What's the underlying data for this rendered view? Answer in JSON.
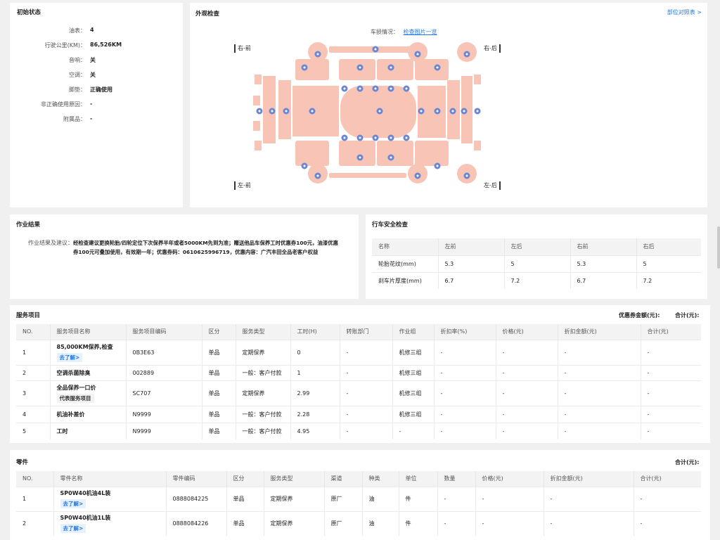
{
  "initial": {
    "title": "初始状态",
    "rows": [
      {
        "k": "油表：",
        "v": "4"
      },
      {
        "k": "行驶公里(KM)：",
        "v": "86,526KM"
      },
      {
        "k": "音响：",
        "v": "关"
      },
      {
        "k": "空调：",
        "v": "关"
      },
      {
        "k": "脚垫：",
        "v": "正确使用"
      },
      {
        "k": "非正确使用原因：",
        "v": "-"
      },
      {
        "k": "附属品：",
        "v": "-"
      }
    ]
  },
  "exterior": {
    "title": "外观检查",
    "compare_link": "部位对照表 >",
    "damage_label": "车损情况：",
    "damage_link": "检查图片一览",
    "corner_labels": {
      "front_right": "右-前",
      "rear_right": "右-后",
      "front_left": "左-前",
      "rear_left": "左-后"
    },
    "colors": {
      "panel": "#f7c4b6",
      "dot": "#6c86d4"
    }
  },
  "work": {
    "title": "作业结果",
    "label": "作业结果及建议：",
    "line1": "经检查建议更换轮胎/四轮定位下次保养半年或者5000KM先到为准；赠送他品车保养工时优惠券100元，油漆优惠",
    "line2": "券100元可叠加使用，有效期一年；优惠券码：0610625996719，优惠内容：广汽丰田全品老客户权益"
  },
  "safety": {
    "title": "行车安全检查",
    "headers": [
      "名称",
      "左前",
      "左后",
      "右前",
      "右后"
    ],
    "rows": [
      [
        "轮胎花纹(mm)",
        "5.3",
        "5",
        "5.3",
        "5"
      ],
      [
        "刹车片厚度(mm)",
        "6.7",
        "7.2",
        "6.7",
        "7.2"
      ]
    ]
  },
  "services": {
    "title": "服务项目",
    "coupon_label": "优惠券金额(元):",
    "total_label": "合计(元):",
    "headers": [
      "NO.",
      "服务项目名称",
      "服务项目编码",
      "区分",
      "服务类型",
      "工时(H)",
      "转账部门",
      "作业组",
      "折扣率(%)",
      "价格(元)",
      "折扣金额(元)",
      "合计(元)"
    ],
    "rows": [
      {
        "no": "1",
        "name": "85,000KM保养,检查",
        "tag": "去了解>",
        "code": "0B3E63",
        "kind": "单品",
        "type": "定期保养",
        "hours": "0",
        "dept": "-",
        "group": "机修三组",
        "rate": "-",
        "price": "-",
        "disc": "-",
        "total": "-"
      },
      {
        "no": "2",
        "name": "空调杀菌除臭",
        "code": "002889",
        "kind": "单品",
        "type": "一般：客户付款",
        "hours": "1",
        "dept": "-",
        "group": "机修三组",
        "rate": "-",
        "price": "-",
        "disc": "-",
        "total": "-"
      },
      {
        "no": "3",
        "name": "全品保养一口价",
        "grey_tag": "代表服务项目",
        "code": "SC707",
        "kind": "单品",
        "type": "定期保养",
        "hours": "2.99",
        "dept": "-",
        "group": "机修三组",
        "rate": "-",
        "price": "-",
        "disc": "-",
        "total": "-"
      },
      {
        "no": "4",
        "name": "机油补差价",
        "code": "N9999",
        "kind": "单品",
        "type": "一般：客户付款",
        "hours": "2.28",
        "dept": "-",
        "group": "机修三组",
        "rate": "-",
        "price": "-",
        "disc": "-",
        "total": "-"
      },
      {
        "no": "5",
        "name": "工时",
        "code": "N9999",
        "kind": "单品",
        "type": "一般：客户付款",
        "hours": "4.95",
        "dept": "-",
        "group": "-",
        "rate": "-",
        "price": "-",
        "disc": "-",
        "total": "-"
      }
    ]
  },
  "parts": {
    "title": "零件",
    "total_label": "合计(元):",
    "headers": [
      "NO.",
      "零件名称",
      "零件编码",
      "区分",
      "服务类型",
      "渠道",
      "种类",
      "单位",
      "数量",
      "价格(元)",
      "折扣金额(元)",
      "合计(元)"
    ],
    "rows": [
      {
        "no": "1",
        "name": "SP0W40机油4L装",
        "tag": "去了解>",
        "code": "0888084225",
        "kind": "单品",
        "type": "定期保养",
        "channel": "原厂",
        "cat": "油",
        "unit": "件",
        "qty": "-",
        "price": "-",
        "disc": "-",
        "total": "-"
      },
      {
        "no": "2",
        "name": "SP0W40机油1L装",
        "tag": "去了解>",
        "code": "0888084226",
        "kind": "单品",
        "type": "定期保养",
        "channel": "原厂",
        "cat": "油",
        "unit": "件",
        "qty": "-",
        "price": "-",
        "disc": "-",
        "total": "-"
      }
    ]
  }
}
